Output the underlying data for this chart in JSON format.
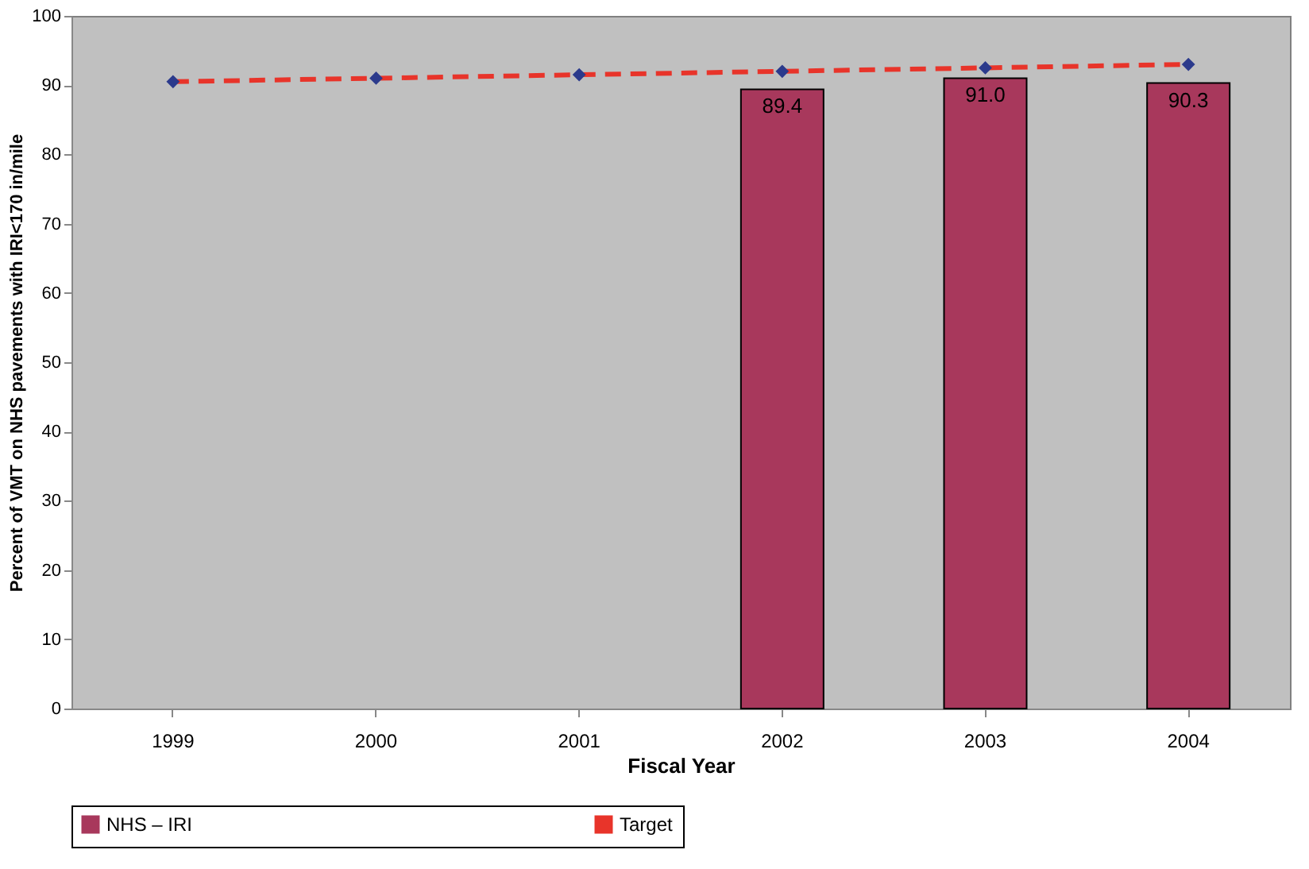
{
  "chart_data": {
    "type": "bar",
    "xlabel": "Fiscal Year",
    "ylabel": "Percent of VMT on NHS pavements with IRI<170 in/mile",
    "categories": [
      "1999",
      "2000",
      "2001",
      "2002",
      "2003",
      "2004"
    ],
    "series": [
      {
        "name": "NHS – IRI",
        "color": "#a8385c",
        "values": [
          null,
          null,
          null,
          89.4,
          91.0,
          90.3
        ],
        "value_labels": [
          null,
          null,
          null,
          "89.4",
          "91.0",
          "90.3"
        ]
      },
      {
        "name": "Target",
        "type": "line",
        "color": "#e8342a",
        "colors": [
          "#2b3a8c",
          "#2b3a8c",
          "#2b3a8c",
          "#2b3a8c",
          "#2b3a8c",
          "#2b3a8c"
        ],
        "marker": "diamond",
        "line_style": "dashed",
        "values": [
          90.5,
          91.0,
          91.5,
          92.0,
          92.5,
          93.0
        ]
      }
    ],
    "ylim": [
      0,
      100
    ],
    "yticks": [
      0,
      10,
      20,
      30,
      40,
      50,
      60,
      70,
      80,
      90,
      100
    ],
    "grid": false,
    "legend": "bottom"
  }
}
